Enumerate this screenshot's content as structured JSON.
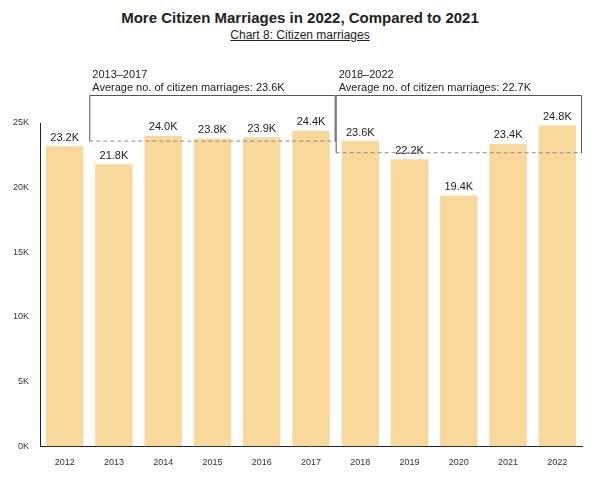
{
  "chart_data": {
    "type": "bar",
    "title": "More Citizen Marriages in 2022, Compared to 2021",
    "subtitle": "Chart 8: Citizen marriages",
    "categories": [
      "2012",
      "2013",
      "2014",
      "2015",
      "2016",
      "2017",
      "2018",
      "2019",
      "2020",
      "2021",
      "2022"
    ],
    "values": [
      23.2,
      21.8,
      24.0,
      23.8,
      23.9,
      24.4,
      23.6,
      22.2,
      19.4,
      23.4,
      24.8
    ],
    "value_labels": [
      "23.2K",
      "21.8K",
      "24.0K",
      "23.8K",
      "23.9K",
      "24.4K",
      "23.6K",
      "22.2K",
      "19.4K",
      "23.4K",
      "24.8K"
    ],
    "color": "#f9d89c",
    "ylim": [
      0,
      25
    ],
    "yticks": [
      {
        "value": 0,
        "label": "0K"
      },
      {
        "value": 5,
        "label": "5K"
      },
      {
        "value": 10,
        "label": "10K"
      },
      {
        "value": 15,
        "label": "15K"
      },
      {
        "value": 20,
        "label": "20K"
      },
      {
        "value": 25,
        "label": "25K"
      }
    ],
    "grid": false,
    "data_labels": true,
    "annotations": [
      {
        "period": "2013–2017",
        "text": "Average no. of citizen marriages: 23.6K",
        "value": 23.6,
        "from": "2013",
        "to": "2017"
      },
      {
        "period": "2018–2022",
        "text": "Average no. of citizen marriages: 22.7K",
        "value": 22.7,
        "from": "2018",
        "to": "2022"
      }
    ]
  }
}
